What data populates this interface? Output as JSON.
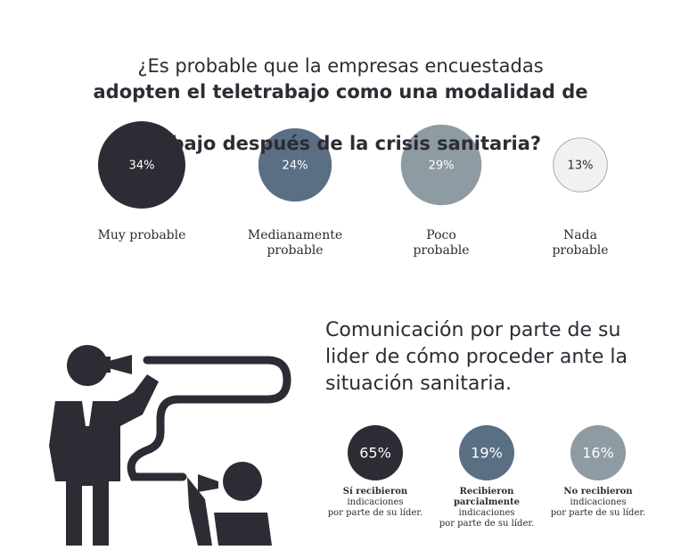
{
  "chart_data": [
    {
      "type": "bubble",
      "title": [
        "¿Es probable que la empresas encuestadas",
        "adopten el teletrabajo como una modalidad de",
        "trabajo después de la crisis sanitaria?"
      ],
      "categories": [
        "Muy probable",
        "Medianamente\nprobable",
        "Poco\nprobable",
        "Nada\nprobable"
      ],
      "values": [
        34,
        24,
        29,
        13
      ],
      "value_labels": [
        "34%",
        "24%",
        "29%",
        "13%"
      ],
      "colors": [
        "#2c2c35",
        "#5a6e84",
        "#8e9ba3",
        "#f1f1f1"
      ],
      "sized": true
    },
    {
      "type": "bubble",
      "title": [
        "Comunicación por parte de su",
        "lider de cómo proceder ante la",
        "situación sanitaria."
      ],
      "categories": [
        "Sí recibieron",
        "Recibieron\nparcialmente",
        "No recibieron"
      ],
      "category_notes": [
        "indicaciones\npor parte de su líder.",
        "indicaciones\npor parte de su líder.",
        "indicaciones\npor parte de su líder."
      ],
      "values": [
        65,
        19,
        16
      ],
      "value_labels": [
        "65%",
        "19%",
        "16%"
      ],
      "colors": [
        "#2c2c35",
        "#5a6e84",
        "#8e9ba3"
      ],
      "sized": false
    }
  ]
}
